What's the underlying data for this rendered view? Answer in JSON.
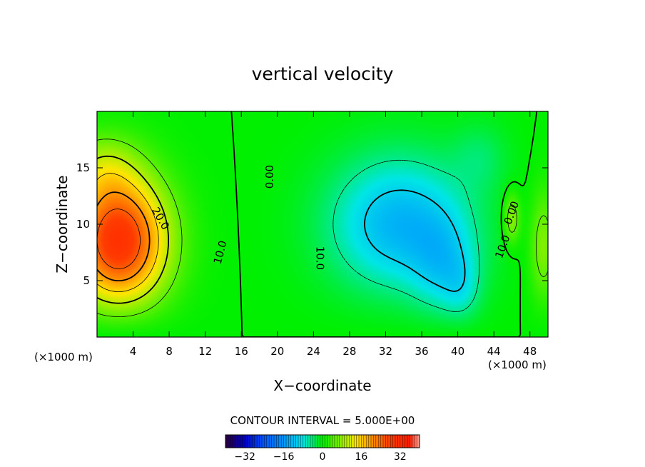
{
  "chart_data": {
    "type": "heatmap",
    "title": "vertical velocity",
    "xlabel": "X−coordinate",
    "ylabel": "Z−coordinate",
    "x_unit": "(×1000 m)",
    "y_unit": "(×1000 m)",
    "xlim": [
      0,
      50
    ],
    "ylim": [
      0,
      20
    ],
    "x_ticks": [
      4,
      8,
      12,
      16,
      20,
      24,
      28,
      32,
      36,
      40,
      44,
      48
    ],
    "y_ticks": [
      5,
      10,
      15
    ],
    "x_tick_labels": [
      "4",
      "8",
      "12",
      "16",
      "20",
      "24",
      "28",
      "32",
      "36",
      "40",
      "44",
      "48"
    ],
    "y_tick_labels": [
      "5",
      "10",
      "15"
    ],
    "contour_interval_text": "CONTOUR INTERVAL = 5.000E+00",
    "contour_labels": [
      {
        "text": "20.0",
        "x": 7.0,
        "y": 10.5,
        "angle": 60
      },
      {
        "text": "10.0",
        "x": 13.7,
        "y": 7.5,
        "angle": -75
      },
      {
        "text": "0.00",
        "x": 19.2,
        "y": 14.2,
        "angle": -90
      },
      {
        "text": "10.0",
        "x": 24.7,
        "y": 7.0,
        "angle": 90
      },
      {
        "text": "10.0",
        "x": 45.0,
        "y": 8.0,
        "angle": -70
      },
      {
        "text": "0.00",
        "x": 46.0,
        "y": 11.0,
        "angle": -70
      }
    ],
    "colorbar": {
      "range": [
        -40,
        40
      ],
      "ticks": [
        -32,
        -16,
        0,
        16,
        32
      ],
      "tick_labels": [
        "−32",
        "−16",
        "0",
        "16",
        "32"
      ]
    },
    "field_features": [
      {
        "kind": "updraft",
        "center": [
          2.5,
          8.5
        ],
        "peak": 30
      },
      {
        "kind": "downdraft",
        "center": [
          35.0,
          10.0
        ],
        "peak": -15
      }
    ],
    "colors": {
      "background_field": "#00f000",
      "positive_max": "#ff3000",
      "negative_max": "#0090ff",
      "contour_line": "#000000"
    }
  }
}
